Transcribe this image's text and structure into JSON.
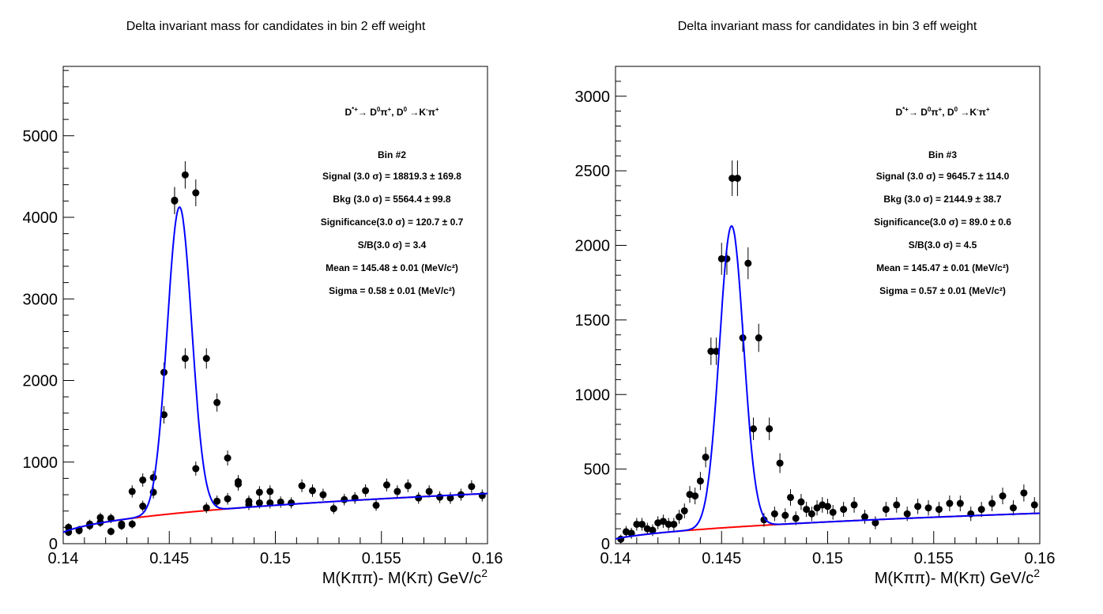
{
  "chart_data": [
    {
      "type": "scatter",
      "title": "Delta invariant mass for candidates in bin 2 eff weight",
      "xlabel_parts": [
        "M(K",
        "ππ",
        ")- M(K",
        "π",
        ") GeV/c",
        "2"
      ],
      "ylabel": "",
      "xlim": [
        0.14,
        0.16
      ],
      "ylim": [
        0,
        5850
      ],
      "x_ticks": [
        0.14,
        0.145,
        0.15,
        0.155,
        0.16
      ],
      "x_tick_labels": [
        "0.14",
        "0.145",
        "0.15",
        "0.155",
        "0.16"
      ],
      "y_ticks": [
        0,
        1000,
        2000,
        3000,
        4000,
        5000
      ],
      "y_tick_labels": [
        "0",
        "1000",
        "2000",
        "3000",
        "4000",
        "5000"
      ],
      "decay_parts": [
        "D",
        "*+",
        "→ D",
        "0",
        "π",
        "+",
        ", D",
        "0",
        " →K",
        "-",
        "π",
        "+"
      ],
      "stats": [
        "Bin #2",
        "Signal (3.0 σ) =  18819.3 ± 169.8",
        "Bkg (3.0 σ) =  5564.4 ± 99.8",
        "Significance(3.0 σ) =  120.7 ± 0.7",
        "S/B(3.0 σ) =  3.4",
        "Mean = 145.48 ± 0.01 (MeV/c²)",
        "Sigma = 0.58 ± 0.01 (MeV/c²)"
      ],
      "signal_model": {
        "mean": 0.14548,
        "sigma": 0.00058,
        "amplitude": 3750
      },
      "background_model": {
        "threshold": 0.1395,
        "scale": 2050,
        "power": 0.4
      },
      "series": [
        {
          "kind": "data",
          "x": [
            0.14025,
            0.14075,
            0.14125,
            0.14175,
            0.14225,
            0.14275,
            0.14325,
            0.14375,
            0.14425,
            0.14475,
            0.14525,
            0.14575,
            0.14625,
            0.14675,
            0.14725,
            0.14775,
            0.14825,
            0.14875,
            0.14925,
            0.14975,
            0.15025,
            0.15075,
            0.15125,
            0.15175,
            0.15225,
            0.15275,
            0.15325,
            0.15375,
            0.15425,
            0.15475,
            0.15525,
            0.15575,
            0.15625,
            0.15675,
            0.15725,
            0.15775,
            0.15825,
            0.15875,
            0.15925,
            0.15975,
            0.14025,
            0.14075,
            0.14125,
            0.14175,
            0.14225,
            0.14275,
            0.14325,
            0.14375,
            0.14425,
            0.14475,
            0.14525,
            0.14575,
            0.14625,
            0.14675,
            0.14725,
            0.14775,
            0.14825,
            0.14875,
            0.14925,
            0.14975
          ],
          "y": [
            200,
            160,
            220,
            260,
            310,
            220,
            640,
            780,
            810,
            2100,
            4200,
            4520,
            4300,
            2270,
            1730,
            1050,
            760,
            520,
            630,
            640,
            510,
            500,
            710,
            650,
            600,
            430,
            540,
            560,
            650,
            470,
            720,
            640,
            710,
            560,
            640,
            570,
            560,
            600,
            700,
            590,
            140,
            170,
            240,
            320,
            150,
            240,
            240,
            460,
            630,
            1580,
            4210,
            2270,
            920,
            440,
            520,
            550,
            730,
            480,
            500,
            500
          ],
          "order_note": ""
        },
        {
          "kind": "total_fit",
          "name": "",
          "color": "#0000ff"
        },
        {
          "kind": "background_fit",
          "name": "",
          "color": "#ff0000"
        }
      ]
    },
    {
      "type": "scatter",
      "title": "Delta invariant mass for candidates in bin 3 eff weight",
      "xlabel_parts": [
        "M(K",
        "ππ",
        ")- M(K",
        "π",
        ") GeV/c",
        "2"
      ],
      "ylabel": "",
      "xlim": [
        0.14,
        0.16
      ],
      "ylim": [
        0,
        3200
      ],
      "x_ticks": [
        0.14,
        0.145,
        0.15,
        0.155,
        0.16
      ],
      "x_tick_labels": [
        "0.14",
        "0.145",
        "0.15",
        "0.155",
        "0.16"
      ],
      "y_ticks": [
        0,
        500,
        1000,
        1500,
        2000,
        2500,
        3000
      ],
      "y_tick_labels": [
        "0",
        "500",
        "1000",
        "1500",
        "2000",
        "2500",
        "3000"
      ],
      "decay_parts": [
        "D",
        "*+",
        "→ D",
        "0",
        "π",
        "+",
        ", D",
        "0",
        " →K",
        "-",
        "π",
        "+"
      ],
      "stats": [
        "Bin #3",
        "Signal (3.0 σ) =  9645.7 ± 114.0",
        "Bkg (3.0 σ) =  2144.9 ± 38.7",
        "Significance(3.0 σ) =  89.0 ± 0.6",
        "S/B(3.0 σ) =  4.5",
        "Mean = 145.47 ± 0.01 (MeV/c²)",
        "Sigma = 0.57 ± 0.01 (MeV/c²)"
      ],
      "signal_model": {
        "mean": 0.14547,
        "sigma": 0.00057,
        "amplitude": 2020
      },
      "background_model": {
        "threshold": 0.1395,
        "scale": 680,
        "power": 0.5
      },
      "series": [
        {
          "kind": "data",
          "x": [
            0.14025,
            0.14075,
            0.14125,
            0.14175,
            0.14225,
            0.14275,
            0.14325,
            0.14375,
            0.14425,
            0.14475,
            0.14525,
            0.14575,
            0.14625,
            0.14675,
            0.14725,
            0.14775,
            0.14825,
            0.14875,
            0.14925,
            0.14975,
            0.15025,
            0.15075,
            0.15125,
            0.15175,
            0.15225,
            0.15275,
            0.15325,
            0.15375,
            0.15425,
            0.15475,
            0.15525,
            0.15575,
            0.15625,
            0.15675,
            0.15725,
            0.15775,
            0.15825,
            0.15875,
            0.15925,
            0.15975,
            0.1405,
            0.141,
            0.1415,
            0.142,
            0.1425,
            0.143,
            0.1435,
            0.144,
            0.1445,
            0.145,
            0.1455,
            0.146,
            0.1465,
            0.147,
            0.1475,
            0.148,
            0.1485,
            0.149,
            0.1495,
            0.15
          ],
          "y": [
            30,
            70,
            130,
            90,
            150,
            130,
            220,
            320,
            580,
            1290,
            1910,
            2450,
            1880,
            1380,
            770,
            540,
            310,
            280,
            200,
            260,
            210,
            230,
            260,
            180,
            140,
            230,
            260,
            200,
            250,
            240,
            230,
            270,
            270,
            200,
            230,
            270,
            320,
            240,
            340,
            260,
            80,
            130,
            100,
            140,
            130,
            180,
            330,
            420,
            1290,
            1910,
            2450,
            1380,
            770,
            160,
            200,
            190,
            170,
            230,
            240,
            250
          ],
          "order_note": ""
        },
        {
          "kind": "total_fit",
          "name": "",
          "color": "#0000ff"
        },
        {
          "kind": "background_fit",
          "name": "",
          "color": "#ff0000"
        }
      ]
    }
  ]
}
